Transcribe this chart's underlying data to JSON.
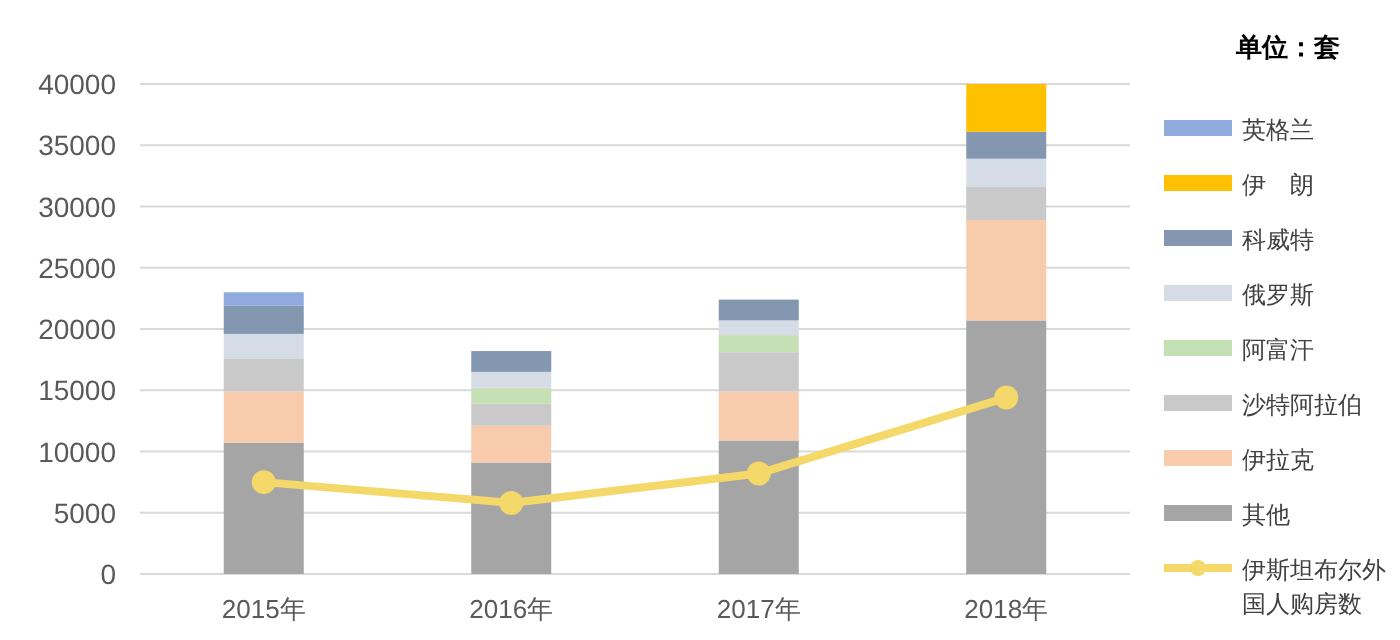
{
  "chart_data": {
    "type": "bar",
    "stacked": true,
    "categories": [
      "2015年",
      "2016年",
      "2017年",
      "2018年"
    ],
    "series": [
      {
        "name": "其他",
        "color": "#a5a5a5",
        "values": [
          10700,
          9100,
          10900,
          20700
        ]
      },
      {
        "name": "伊拉克",
        "color": "#f8cbad",
        "values": [
          4200,
          3000,
          4000,
          8200
        ]
      },
      {
        "name": "沙特阿拉伯",
        "color": "#c9c9c9",
        "values": [
          2700,
          1800,
          3200,
          2700
        ]
      },
      {
        "name": "阿富汗",
        "color": "#c5e0b4",
        "values": [
          null,
          1300,
          1400,
          null
        ]
      },
      {
        "name": "俄罗斯",
        "color": "#d6dce5",
        "values": [
          2000,
          1300,
          1200,
          2300
        ]
      },
      {
        "name": "科威特",
        "color": "#8497b0",
        "values": [
          2300,
          1700,
          1700,
          2200
        ]
      },
      {
        "name": "伊　朗",
        "color": "#ffc000",
        "values": [
          null,
          null,
          null,
          3900
        ]
      },
      {
        "name": "英格兰",
        "color": "#8faadc",
        "values": [
          1100,
          null,
          null,
          null
        ]
      },
      {
        "name": "伊斯坦布尔外国人购房数",
        "type": "line",
        "color": "#f5d86a",
        "marker": "circle",
        "values": [
          7500,
          5800,
          8200,
          14400
        ]
      }
    ],
    "ylim": [
      0,
      40000
    ],
    "yticks": [
      0,
      5000,
      10000,
      15000,
      20000,
      25000,
      30000,
      35000,
      40000
    ],
    "grid": "y",
    "legend": "right",
    "legend_title": "单位：套"
  }
}
